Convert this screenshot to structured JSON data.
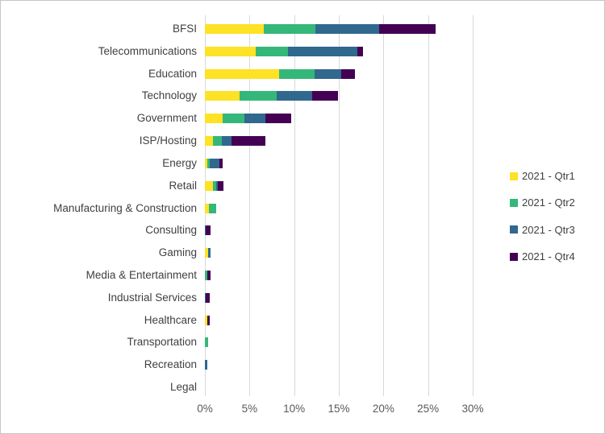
{
  "chart": {
    "background": "#ffffff",
    "border_color": "#c6c6c6",
    "gridline_color": "#d9d9d9",
    "category_text_color": "#404040",
    "axis_text_color": "#595959"
  },
  "chart_data": {
    "type": "bar",
    "orientation": "horizontal",
    "stacked": true,
    "grid": true,
    "legend_position": "right",
    "xlabel": "",
    "ylabel": "",
    "xlim": [
      0,
      32
    ],
    "x_ticks": [
      "0%",
      "5%",
      "10%",
      "15%",
      "20%",
      "25%",
      "30%"
    ],
    "x_tick_values": [
      0,
      5,
      10,
      15,
      20,
      25,
      30
    ],
    "categories": [
      "BFSI",
      "Telecommunications",
      "Education",
      "Technology",
      "Government",
      "ISP/Hosting",
      "Energy",
      "Retail",
      "Manufacturing & Construction",
      "Consulting",
      "Gaming",
      "Media & Entertainment",
      "Industrial Services",
      "Healthcare",
      "Transportation",
      "Recreation",
      "Legal"
    ],
    "series": [
      {
        "name": "2021 - Qtr1",
        "color": "#fde226",
        "values": [
          6.6,
          5.7,
          8.3,
          3.9,
          2.0,
          0.9,
          0.25,
          0.9,
          0.45,
          0,
          0.4,
          0,
          0,
          0.25,
          0,
          0,
          0
        ]
      },
      {
        "name": "2021 - Qtr2",
        "color": "#35b779",
        "values": [
          5.8,
          3.6,
          4.0,
          4.1,
          2.4,
          1.0,
          0.25,
          0.35,
          0.85,
          0,
          0,
          0.3,
          0,
          0,
          0.35,
          0,
          0
        ]
      },
      {
        "name": "2021 - Qtr3",
        "color": "#31688e",
        "values": [
          7.1,
          7.8,
          3.0,
          4.0,
          2.4,
          1.1,
          1.1,
          0.2,
          0,
          0.1,
          0.2,
          0,
          0.1,
          0,
          0,
          0.3,
          0
        ]
      },
      {
        "name": "2021 - Qtr4",
        "color": "#440154",
        "values": [
          6.3,
          0.6,
          1.5,
          2.9,
          2.9,
          3.8,
          0.4,
          0.65,
          0,
          0.5,
          0,
          0.3,
          0.45,
          0.25,
          0,
          0,
          0
        ]
      }
    ]
  }
}
